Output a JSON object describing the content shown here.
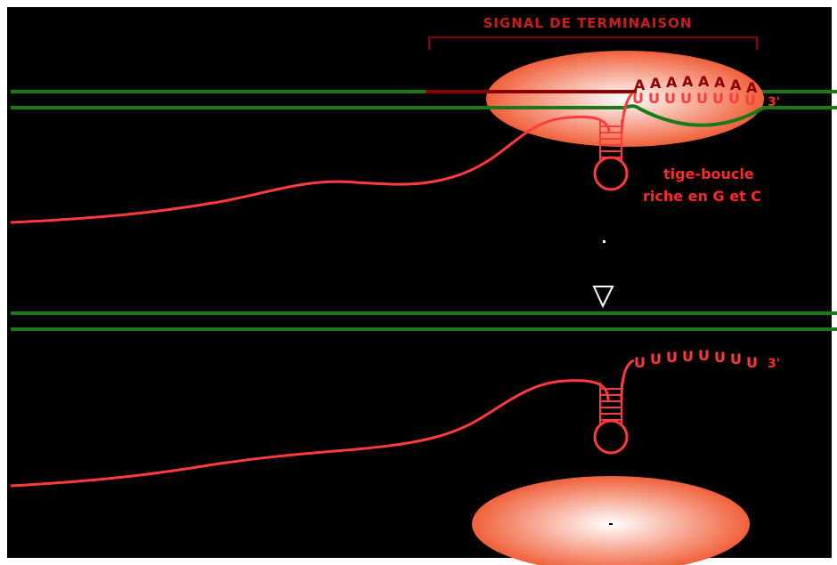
{
  "title": "SIGNAL DE TERMINAISON",
  "labels": {
    "stem_loop_line1": "tige-boucle",
    "stem_loop_line2": "riche en G et C",
    "three_prime_top": "3'",
    "three_prime_bottom": "3'"
  },
  "sequences": {
    "a_letters": [
      "A",
      "A",
      "A",
      "A",
      "A",
      "A",
      "A",
      "A"
    ],
    "u_letters_top": [
      "U",
      "U",
      "U",
      "U",
      "U",
      "U",
      "U",
      "U"
    ],
    "u_letters_bottom": [
      "U",
      "U",
      "U",
      "U",
      "U",
      "U",
      "U",
      "U"
    ]
  },
  "colors": {
    "background": "#000000",
    "dna_strand": "#1a7a1a",
    "template_strand_dark": "#8b0000",
    "rna": "#ff3b3b",
    "label_text": "#ff2a2a",
    "title_text": "#c81e1e",
    "polymerase_center": "#ffffff",
    "polymerase_edge": "#f0603a"
  },
  "icons": {
    "arrow": "down-arrow-icon"
  }
}
